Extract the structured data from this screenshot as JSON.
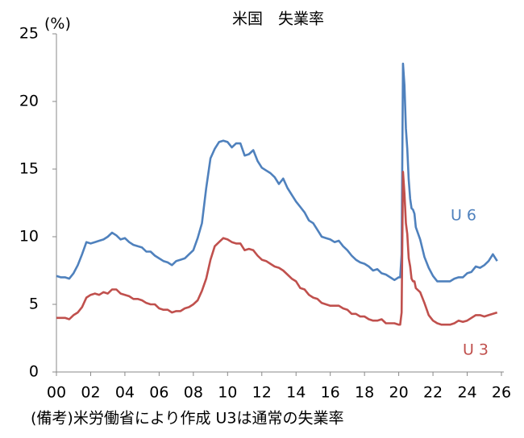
{
  "chart_data": {
    "type": "line",
    "title": "米国　失業率",
    "y_unit_label": "(%)",
    "footnote": "(備考)米労働省により作成 U3は通常の失業率",
    "x": [
      0,
      0.25,
      0.5,
      0.75,
      1,
      1.25,
      1.5,
      1.75,
      2,
      2.25,
      2.5,
      2.75,
      3,
      3.25,
      3.5,
      3.75,
      4,
      4.25,
      4.5,
      4.75,
      5,
      5.25,
      5.5,
      5.75,
      6,
      6.25,
      6.5,
      6.75,
      7,
      7.25,
      7.5,
      7.75,
      8,
      8.25,
      8.5,
      8.75,
      9,
      9.25,
      9.5,
      9.75,
      10,
      10.25,
      10.5,
      10.75,
      11,
      11.25,
      11.5,
      11.75,
      12,
      12.25,
      12.5,
      12.75,
      13,
      13.25,
      13.5,
      13.75,
      14,
      14.25,
      14.5,
      14.75,
      15,
      15.25,
      15.5,
      15.75,
      16,
      16.25,
      16.5,
      16.75,
      17,
      17.25,
      17.5,
      17.75,
      18,
      18.25,
      18.5,
      18.75,
      19,
      19.25,
      19.5,
      19.75,
      20,
      20.083,
      20.167,
      20.25,
      20.333,
      20.417,
      20.5,
      20.583,
      20.667,
      20.75,
      20.833,
      20.917,
      21,
      21.25,
      21.5,
      21.75,
      22,
      22.25,
      22.5,
      22.75,
      23,
      23.25,
      23.5,
      23.75,
      24,
      24.25,
      24.5,
      24.75,
      25,
      25.25,
      25.5,
      25.75
    ],
    "series": [
      {
        "name": "U 6",
        "color": "#4f81bd",
        "values": [
          7.1,
          7.0,
          7.0,
          6.9,
          7.3,
          7.9,
          8.7,
          9.6,
          9.5,
          9.6,
          9.7,
          9.8,
          10.0,
          10.3,
          10.1,
          9.8,
          9.9,
          9.6,
          9.4,
          9.3,
          9.2,
          8.9,
          8.9,
          8.6,
          8.4,
          8.2,
          8.1,
          7.9,
          8.2,
          8.3,
          8.4,
          8.7,
          9.0,
          9.9,
          11.0,
          13.6,
          15.8,
          16.5,
          17.0,
          17.1,
          17.0,
          16.6,
          16.9,
          16.9,
          16.0,
          16.1,
          16.4,
          15.6,
          15.1,
          14.9,
          14.7,
          14.4,
          13.9,
          14.3,
          13.6,
          13.1,
          12.6,
          12.2,
          11.8,
          11.2,
          11.0,
          10.5,
          10.0,
          9.9,
          9.8,
          9.6,
          9.7,
          9.3,
          9.0,
          8.6,
          8.3,
          8.1,
          8.0,
          7.8,
          7.5,
          7.6,
          7.3,
          7.2,
          7.0,
          6.8,
          7.0,
          7.0,
          8.7,
          22.8,
          21.2,
          18.0,
          16.5,
          14.2,
          12.8,
          12.1,
          12.0,
          11.7,
          10.7,
          9.8,
          8.5,
          7.7,
          7.1,
          6.7,
          6.7,
          6.7,
          6.7,
          6.9,
          7.0,
          7.0,
          7.3,
          7.4,
          7.8,
          7.7,
          7.9,
          8.2,
          8.7,
          8.2
        ]
      },
      {
        "name": "U 3",
        "color": "#c0504d",
        "values": [
          4.0,
          4.0,
          4.0,
          3.9,
          4.2,
          4.4,
          4.8,
          5.5,
          5.7,
          5.8,
          5.7,
          5.9,
          5.8,
          6.1,
          6.1,
          5.8,
          5.7,
          5.6,
          5.4,
          5.4,
          5.3,
          5.1,
          5.0,
          5.0,
          4.7,
          4.6,
          4.6,
          4.4,
          4.5,
          4.5,
          4.7,
          4.8,
          5.0,
          5.3,
          6.0,
          6.9,
          8.3,
          9.3,
          9.6,
          9.9,
          9.8,
          9.6,
          9.5,
          9.5,
          9.0,
          9.1,
          9.0,
          8.6,
          8.3,
          8.2,
          8.0,
          7.8,
          7.7,
          7.5,
          7.2,
          6.9,
          6.7,
          6.2,
          6.1,
          5.7,
          5.5,
          5.4,
          5.1,
          5.0,
          4.9,
          4.9,
          4.9,
          4.7,
          4.6,
          4.3,
          4.3,
          4.1,
          4.1,
          3.9,
          3.8,
          3.8,
          3.9,
          3.6,
          3.6,
          3.6,
          3.5,
          3.5,
          4.4,
          14.8,
          13.2,
          11.0,
          10.2,
          8.4,
          7.8,
          6.9,
          6.7,
          6.7,
          6.2,
          5.9,
          5.1,
          4.2,
          3.8,
          3.6,
          3.5,
          3.5,
          3.5,
          3.6,
          3.8,
          3.7,
          3.8,
          4.0,
          4.2,
          4.2,
          4.1,
          4.2,
          4.3,
          4.4
        ]
      }
    ],
    "xlim": [
      0,
      26
    ],
    "xticks": [
      {
        "value": 0,
        "label": "00"
      },
      {
        "value": 2,
        "label": "02"
      },
      {
        "value": 4,
        "label": "04"
      },
      {
        "value": 6,
        "label": "06"
      },
      {
        "value": 8,
        "label": "08"
      },
      10,
      12,
      14,
      16,
      18,
      20,
      22,
      24,
      26
    ],
    "ylim": [
      0,
      25
    ],
    "yticks": [
      0,
      5,
      10,
      15,
      20,
      25
    ],
    "grid": false
  }
}
